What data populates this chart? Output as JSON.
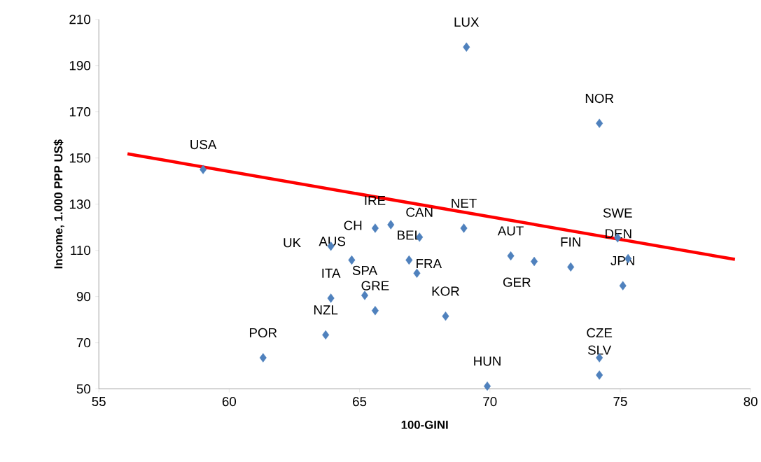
{
  "chart_data": {
    "type": "scatter",
    "xlabel": "100-GINI",
    "ylabel": "Income, 1.000 PPP US$",
    "xlim": [
      55,
      80
    ],
    "xticks": [
      55,
      60,
      65,
      70,
      75,
      80
    ],
    "ylim": [
      50,
      210
    ],
    "yticks": [
      50,
      70,
      90,
      110,
      130,
      150,
      170,
      190,
      210
    ],
    "grid": false,
    "series": [
      {
        "marker": "diamond",
        "color": "#4f81bd",
        "x": [
          59.0,
          61.3,
          63.7,
          63.9,
          63.9,
          64.7,
          65.2,
          65.6,
          65.6,
          66.2,
          67.3,
          66.9,
          67.2,
          68.3,
          69.0,
          69.1,
          69.9,
          70.8,
          71.7,
          73.1,
          74.2,
          74.2,
          74.2,
          74.9,
          75.3,
          75.1
        ],
        "values": [
          145,
          63.5,
          73.4,
          89.3,
          111.8,
          105.8,
          90.5,
          83.9,
          119.6,
          121.1,
          115.7,
          105.8,
          100.1,
          81.5,
          119.6,
          198,
          51.2,
          107.6,
          105.2,
          102.8,
          165,
          63.5,
          56,
          115.4,
          106.4,
          94.7
        ]
      },
      {
        "type": "line",
        "marker": "none",
        "color": "#ff0000",
        "x": [
          56.1,
          79.4
        ],
        "values": [
          151.8,
          106.1
        ]
      }
    ],
    "annotations": [
      {
        "text": "USA",
        "x": 59.0,
        "y": 145
      },
      {
        "text": "POR",
        "x": 61.3,
        "y": 63.5
      },
      {
        "text": "NZL",
        "x": 63.7,
        "y": 73.4
      },
      {
        "text": "ITA",
        "x": 63.9,
        "y": 89.3
      },
      {
        "text": "UK",
        "x": 63.9,
        "y": 111.8
      },
      {
        "text": "AUS",
        "x": 64.7,
        "y": 105.8
      },
      {
        "text": "SPA",
        "x": 65.2,
        "y": 90.5
      },
      {
        "text": "GRE",
        "x": 65.6,
        "y": 83.9
      },
      {
        "text": "IRE",
        "x": 66.2,
        "y": 121.1
      },
      {
        "text": "CH",
        "x": 65.6,
        "y": 119.6
      },
      {
        "text": "CAN",
        "x": 67.3,
        "y": 115.7
      },
      {
        "text": "BEL",
        "x": 66.9,
        "y": 105.8
      },
      {
        "text": "FRA",
        "x": 67.2,
        "y": 100.1
      },
      {
        "text": "KOR",
        "x": 68.3,
        "y": 81.5
      },
      {
        "text": "NET",
        "x": 69.0,
        "y": 119.6
      },
      {
        "text": "LUX",
        "x": 69.1,
        "y": 198
      },
      {
        "text": "HUN",
        "x": 69.9,
        "y": 51.2
      },
      {
        "text": "AUT",
        "x": 70.8,
        "y": 107.6
      },
      {
        "text": "GER",
        "x": 71.7,
        "y": 105.2
      },
      {
        "text": "FIN",
        "x": 73.1,
        "y": 102.8
      },
      {
        "text": "NOR",
        "x": 74.2,
        "y": 165
      },
      {
        "text": "CZE",
        "x": 74.2,
        "y": 63.5
      },
      {
        "text": "SLV",
        "x": 74.2,
        "y": 56
      },
      {
        "text": "SWE",
        "x": 74.9,
        "y": 115.4
      },
      {
        "text": "DEN",
        "x": 75.3,
        "y": 106.4
      },
      {
        "text": "JPN",
        "x": 75.1,
        "y": 94.7
      }
    ]
  }
}
